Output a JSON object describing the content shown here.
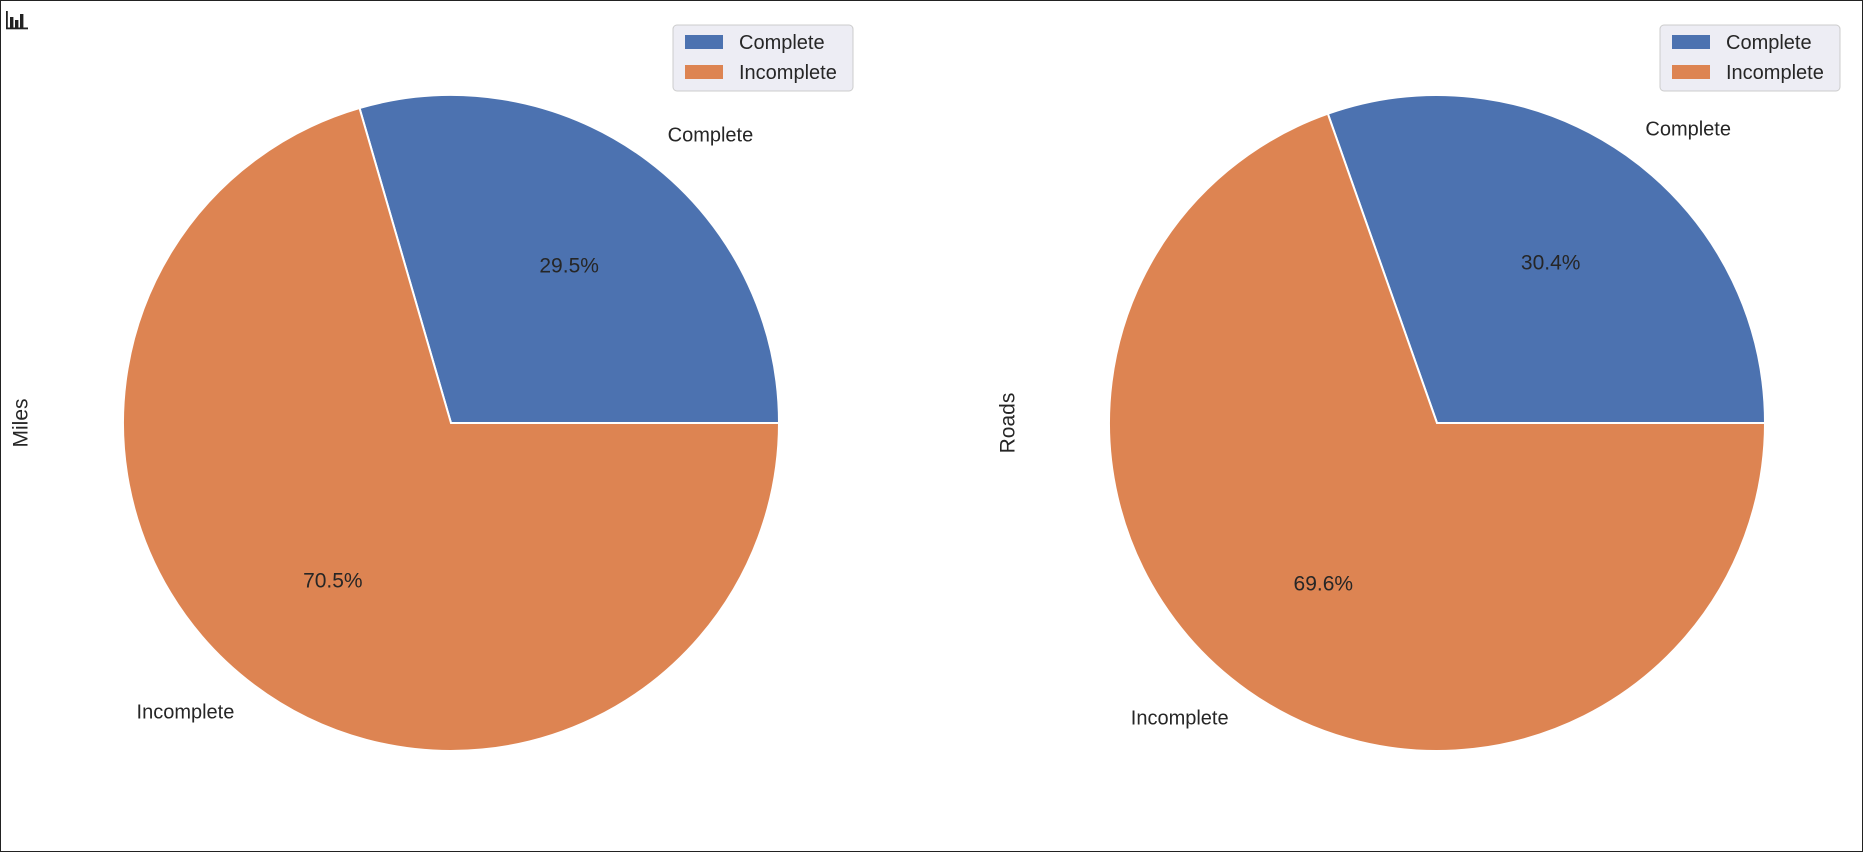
{
  "toolbar": {
    "icon": "bar-chart-icon"
  },
  "colors": {
    "complete": "#4c72b0",
    "incomplete": "#dd8452",
    "legend_bg": "#eaeaf2",
    "legend_border": "#cccccc",
    "text": "#262626"
  },
  "chart_data": [
    {
      "type": "pie",
      "ylabel": "Miles",
      "labels": [
        "Complete",
        "Incomplete"
      ],
      "values": [
        29.5,
        70.5
      ],
      "value_labels": [
        "29.5%",
        "70.5%"
      ],
      "legend": [
        "Complete",
        "Incomplete"
      ],
      "legend_position": "top-right"
    },
    {
      "type": "pie",
      "ylabel": "Roads",
      "labels": [
        "Complete",
        "Incomplete"
      ],
      "values": [
        30.4,
        69.6
      ],
      "value_labels": [
        "30.4%",
        "69.6%"
      ],
      "legend": [
        "Complete",
        "Incomplete"
      ],
      "legend_position": "top-right"
    }
  ]
}
